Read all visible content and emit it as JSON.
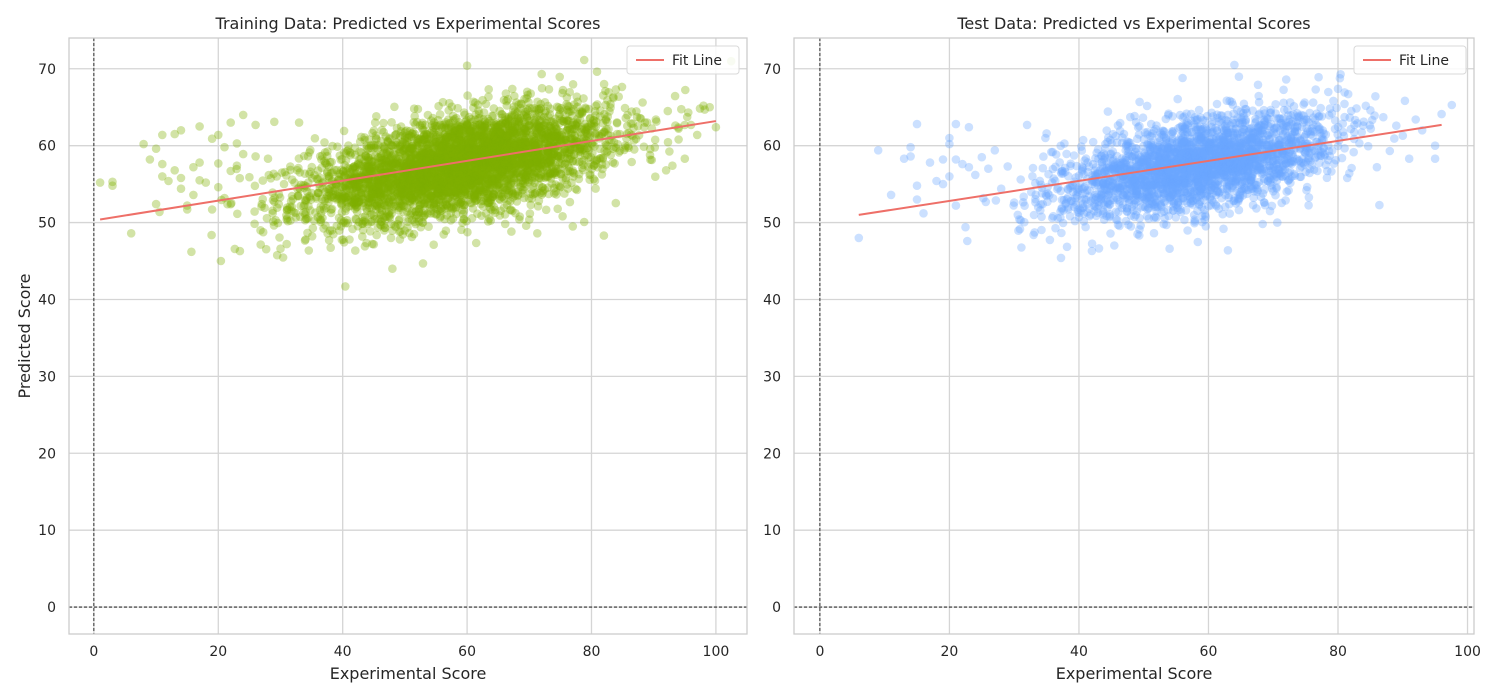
{
  "chart_data": [
    {
      "type": "scatter",
      "title": "Training Data: Predicted vs Experimental Scores",
      "xlabel": "Experimental Score",
      "ylabel": "Predicted Score",
      "xlim": [
        -4,
        105
      ],
      "ylim": [
        -3.5,
        74
      ],
      "xticks": [
        0,
        20,
        40,
        60,
        80,
        100
      ],
      "yticks": [
        0,
        10,
        20,
        30,
        40,
        50,
        60,
        70
      ],
      "grid": true,
      "reference_lines": {
        "x": 0,
        "y": 0
      },
      "legend": {
        "position": "top-right",
        "entries": [
          "Fit Line"
        ]
      },
      "colors": {
        "points": "#7fb000",
        "fit_line": "#ee6f68",
        "grid": "#d5d5d5",
        "frame": "#cccccc"
      },
      "series": [
        {
          "kind": "points",
          "cloud_approximation": {
            "x_mean": 59,
            "x_sd": 12,
            "y_mean": 57.5,
            "y_sd": 3.6,
            "correlation": 0.52,
            "count": 4200
          },
          "outliers": [
            {
              "x": 1,
              "y": 55.2
            },
            {
              "x": 3,
              "y": 54.8
            },
            {
              "x": 3,
              "y": 55.3
            },
            {
              "x": 6,
              "y": 48.6
            },
            {
              "x": 8,
              "y": 60.2
            },
            {
              "x": 9,
              "y": 58.2
            },
            {
              "x": 10,
              "y": 59.6
            },
            {
              "x": 10,
              "y": 52.4
            },
            {
              "x": 11,
              "y": 61.4
            },
            {
              "x": 11,
              "y": 57.6
            },
            {
              "x": 11,
              "y": 56.0
            },
            {
              "x": 12,
              "y": 55.4
            },
            {
              "x": 13,
              "y": 61.5
            },
            {
              "x": 13,
              "y": 56.8
            },
            {
              "x": 14,
              "y": 62.0
            },
            {
              "x": 14,
              "y": 55.8
            },
            {
              "x": 14,
              "y": 54.4
            },
            {
              "x": 15,
              "y": 52.2
            },
            {
              "x": 15,
              "y": 51.7
            },
            {
              "x": 16,
              "y": 57.2
            },
            {
              "x": 16,
              "y": 53.6
            },
            {
              "x": 17,
              "y": 62.5
            },
            {
              "x": 17,
              "y": 57.8
            },
            {
              "x": 17,
              "y": 55.5
            },
            {
              "x": 18,
              "y": 55.2
            },
            {
              "x": 19,
              "y": 60.9
            },
            {
              "x": 19,
              "y": 51.7
            },
            {
              "x": 20,
              "y": 61.4
            },
            {
              "x": 20,
              "y": 57.7
            },
            {
              "x": 20,
              "y": 54.6
            },
            {
              "x": 21,
              "y": 59.8
            },
            {
              "x": 21,
              "y": 53.2
            },
            {
              "x": 22,
              "y": 63.0
            },
            {
              "x": 22,
              "y": 56.7
            },
            {
              "x": 23,
              "y": 60.3
            },
            {
              "x": 23,
              "y": 57.4
            },
            {
              "x": 24,
              "y": 64.0
            },
            {
              "x": 24,
              "y": 58.9
            },
            {
              "x": 25,
              "y": 55.9
            },
            {
              "x": 26,
              "y": 62.7
            },
            {
              "x": 26,
              "y": 58.6
            },
            {
              "x": 27,
              "y": 52.4
            },
            {
              "x": 28,
              "y": 58.3
            },
            {
              "x": 29,
              "y": 63.1
            },
            {
              "x": 29,
              "y": 52.7
            },
            {
              "x": 30,
              "y": 46.6
            },
            {
              "x": 31,
              "y": 50.4
            },
            {
              "x": 31,
              "y": 47.2
            },
            {
              "x": 33,
              "y": 63.0
            },
            {
              "x": 92,
              "y": 56.8
            },
            {
              "x": 93,
              "y": 57.4
            },
            {
              "x": 94,
              "y": 62.2
            },
            {
              "x": 94,
              "y": 60.8
            },
            {
              "x": 95,
              "y": 58.3
            },
            {
              "x": 96,
              "y": 62.7
            },
            {
              "x": 97,
              "y": 61.4
            },
            {
              "x": 98,
              "y": 65.2
            },
            {
              "x": 99,
              "y": 65.0
            },
            {
              "x": 100,
              "y": 62.4
            },
            {
              "x": 82,
              "y": 48.3
            },
            {
              "x": 77,
              "y": 49.5
            },
            {
              "x": 60,
              "y": 70.4
            },
            {
              "x": 72,
              "y": 69.3
            },
            {
              "x": 48,
              "y": 44.0
            }
          ]
        },
        {
          "kind": "fit",
          "name": "Fit Line",
          "x": [
            1,
            100
          ],
          "y": [
            50.4,
            63.2
          ]
        }
      ]
    },
    {
      "type": "scatter",
      "title": "Test Data: Predicted vs Experimental Scores",
      "xlabel": "Experimental Score",
      "ylabel": "",
      "xlim": [
        -4,
        101
      ],
      "ylim": [
        -3.5,
        74
      ],
      "xticks": [
        0,
        20,
        40,
        60,
        80,
        100
      ],
      "yticks": [
        0,
        10,
        20,
        30,
        40,
        50,
        60,
        70
      ],
      "grid": true,
      "reference_lines": {
        "x": 0,
        "y": 0
      },
      "legend": {
        "position": "top-right",
        "entries": [
          "Fit Line"
        ]
      },
      "colors": {
        "points": "#6aa6ff",
        "fit_line": "#ee6f68",
        "grid": "#d5d5d5",
        "frame": "#cccccc"
      },
      "series": [
        {
          "kind": "points",
          "cloud_approximation": {
            "x_mean": 58,
            "x_sd": 10.5,
            "y_mean": 57.5,
            "y_sd": 3.4,
            "correlation": 0.5,
            "count": 2600
          },
          "outliers": [
            {
              "x": 6,
              "y": 48.0
            },
            {
              "x": 9,
              "y": 59.4
            },
            {
              "x": 11,
              "y": 53.6
            },
            {
              "x": 13,
              "y": 58.3
            },
            {
              "x": 14,
              "y": 59.8
            },
            {
              "x": 14,
              "y": 58.6
            },
            {
              "x": 15,
              "y": 62.8
            },
            {
              "x": 15,
              "y": 54.8
            },
            {
              "x": 15,
              "y": 53.0
            },
            {
              "x": 16,
              "y": 51.2
            },
            {
              "x": 17,
              "y": 57.8
            },
            {
              "x": 18,
              "y": 55.4
            },
            {
              "x": 19,
              "y": 58.2
            },
            {
              "x": 19,
              "y": 55.0
            },
            {
              "x": 20,
              "y": 61.0
            },
            {
              "x": 20,
              "y": 60.2
            },
            {
              "x": 20,
              "y": 56.0
            },
            {
              "x": 21,
              "y": 62.8
            },
            {
              "x": 21,
              "y": 58.2
            },
            {
              "x": 21,
              "y": 52.2
            },
            {
              "x": 22,
              "y": 57.6
            },
            {
              "x": 23,
              "y": 62.4
            },
            {
              "x": 23,
              "y": 57.2
            },
            {
              "x": 24,
              "y": 56.2
            },
            {
              "x": 25,
              "y": 58.5
            },
            {
              "x": 26,
              "y": 57.0
            },
            {
              "x": 27,
              "y": 59.4
            },
            {
              "x": 28,
              "y": 54.4
            },
            {
              "x": 29,
              "y": 57.3
            },
            {
              "x": 30,
              "y": 52.6
            },
            {
              "x": 31,
              "y": 55.6
            },
            {
              "x": 31,
              "y": 50.3
            },
            {
              "x": 32,
              "y": 62.7
            },
            {
              "x": 33,
              "y": 48.4
            },
            {
              "x": 35,
              "y": 61.6
            },
            {
              "x": 42,
              "y": 46.3
            },
            {
              "x": 54,
              "y": 46.6
            },
            {
              "x": 56,
              "y": 68.8
            },
            {
              "x": 63,
              "y": 46.4
            },
            {
              "x": 64,
              "y": 70.5
            },
            {
              "x": 72,
              "y": 68.6
            },
            {
              "x": 77,
              "y": 68.9
            },
            {
              "x": 80,
              "y": 67.4
            },
            {
              "x": 85,
              "y": 64.6
            },
            {
              "x": 86,
              "y": 57.2
            },
            {
              "x": 87,
              "y": 63.7
            },
            {
              "x": 88,
              "y": 59.3
            },
            {
              "x": 89,
              "y": 62.6
            },
            {
              "x": 90,
              "y": 61.3
            },
            {
              "x": 91,
              "y": 58.3
            },
            {
              "x": 92,
              "y": 63.4
            },
            {
              "x": 93,
              "y": 62.0
            },
            {
              "x": 95,
              "y": 60.0
            },
            {
              "x": 95,
              "y": 58.3
            },
            {
              "x": 96,
              "y": 64.1
            }
          ]
        },
        {
          "kind": "fit",
          "name": "Fit Line",
          "x": [
            6,
            96
          ],
          "y": [
            51.0,
            62.7
          ]
        }
      ]
    }
  ]
}
